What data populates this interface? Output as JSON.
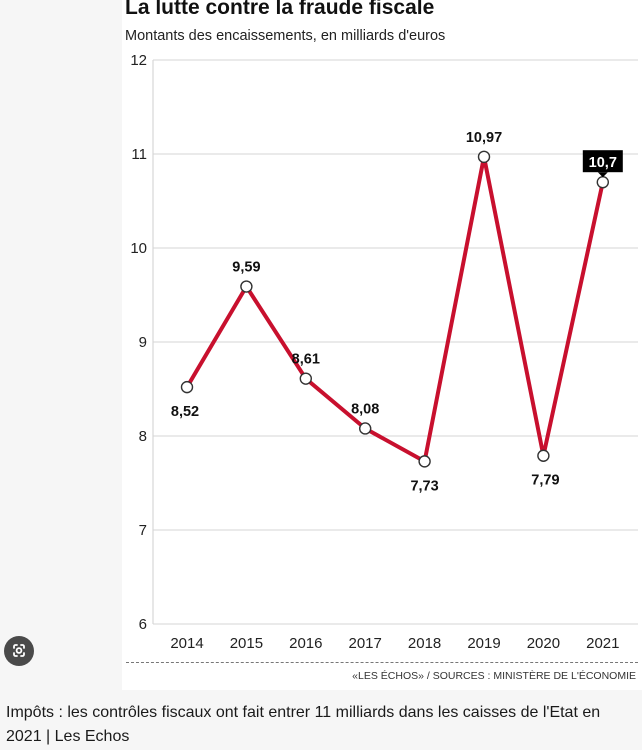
{
  "chart_data": {
    "type": "line",
    "title": "La lutte contre la fraude fiscale",
    "subtitle": "Montants des encaissements, en milliards d'euros",
    "x": [
      "2014",
      "2015",
      "2016",
      "2017",
      "2018",
      "2019",
      "2020",
      "2021"
    ],
    "series": [
      {
        "values": [
          8.52,
          9.59,
          8.61,
          8.08,
          7.73,
          10.97,
          7.79,
          10.7
        ],
        "labels": [
          "8,52",
          "9,59",
          "8,61",
          "8,08",
          "7,73",
          "10,97",
          "7,79",
          "10,7"
        ],
        "color": "#c8102e"
      }
    ],
    "ylim": [
      6,
      12
    ],
    "yticks": [
      6,
      7,
      8,
      9,
      10,
      11,
      12
    ],
    "grid": "horizontal",
    "highlight_last": true,
    "highlight_color": "#000000"
  },
  "source": "«LES ÉCHOS» / SOURCES : MINISTÈRE DE L'ÉCONOMIE",
  "caption": "Impôts : les contrôles fiscaux ont fait entrer 11 milliards dans les caisses de l'Etat en 2021 | Les Echos",
  "icons": {
    "lens": "google-lens-icon"
  }
}
